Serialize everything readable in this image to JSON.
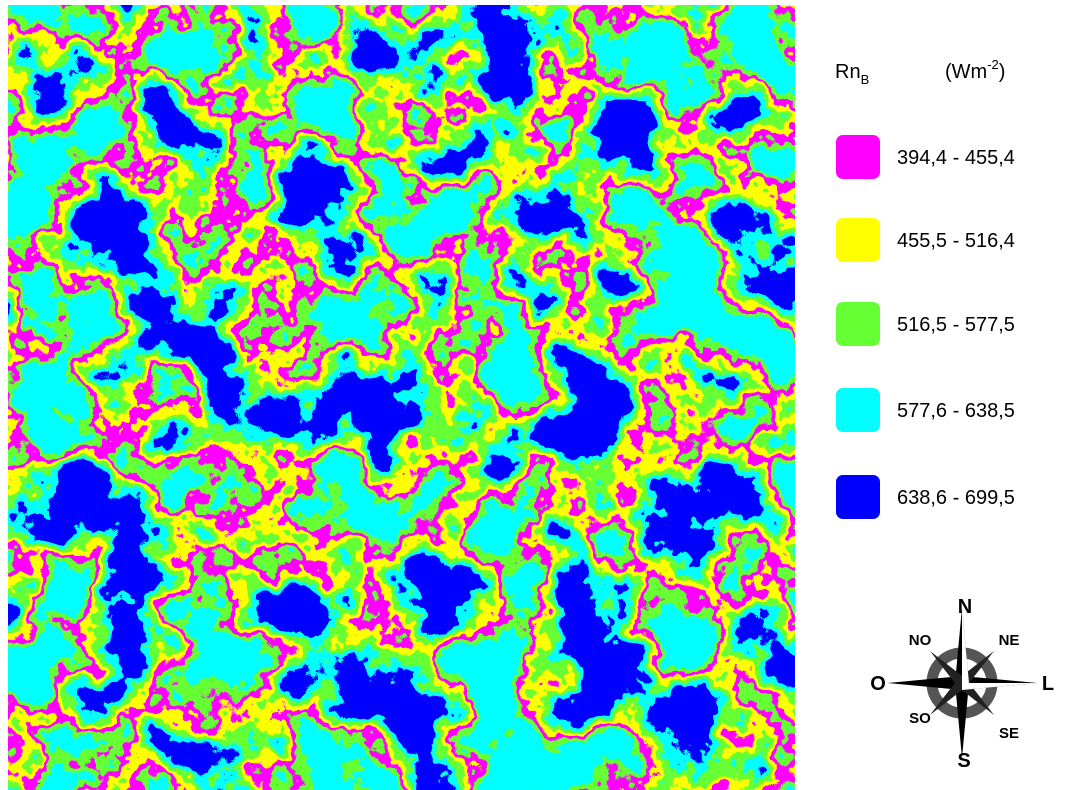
{
  "legend": {
    "title": {
      "base": "Rn",
      "sub": "B"
    },
    "unit": {
      "open": "(Wm",
      "sup": "-2",
      "close": ")"
    },
    "items": [
      {
        "label": "394,4 - 455,4",
        "color": "#ff00ff"
      },
      {
        "label": "455,5 - 516,4",
        "color": "#ffff00"
      },
      {
        "label": "516,5 - 577,5",
        "color": "#66ff33"
      },
      {
        "label": "577,6 - 638,5",
        "color": "#00ffff"
      },
      {
        "label": "638,6 - 699,5",
        "color": "#0000ff"
      }
    ]
  },
  "compass": {
    "n": "N",
    "ne": "NE",
    "e": "L",
    "se": "SE",
    "s": "S",
    "sw": "SO",
    "w": "O",
    "nw": "NO"
  }
}
